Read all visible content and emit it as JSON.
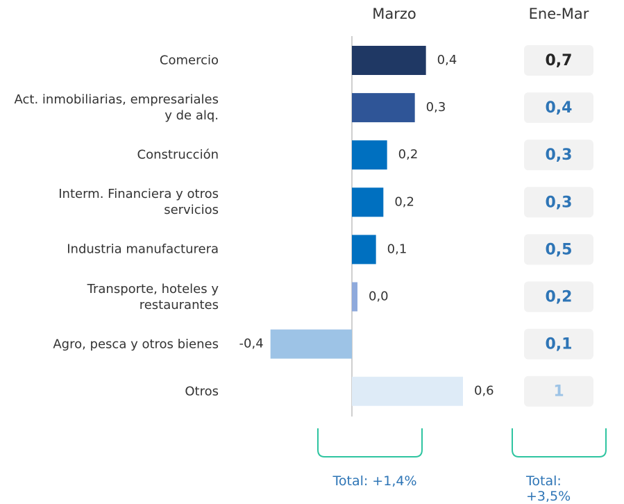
{
  "chart_data": {
    "type": "bar",
    "orientation": "horizontal",
    "categories": [
      "Comercio",
      "Act. inmobiliarias, empresariales y de alq.",
      "Construcción",
      "Interm. Financiera y otros servicios",
      "Industria manufacturera",
      "Transporte, hoteles y restaurantes",
      "Agro, pesca y otros bienes",
      "Otros"
    ],
    "series": [
      {
        "name": "Marzo",
        "values": [
          0.4,
          0.34,
          0.19,
          0.17,
          0.13,
          0.03,
          -0.44,
          0.6
        ],
        "value_labels": [
          "0,4",
          "0,3",
          "0,2",
          "0,2",
          "0,1",
          "0,0",
          "-0,4",
          "0,6"
        ],
        "colors": [
          "#1f3864",
          "#2f5597",
          "#0070c0",
          "#0070c0",
          "#0070c0",
          "#8faadc",
          "#9dc3e6",
          "#deebf7"
        ]
      },
      {
        "name": "Ene-Mar",
        "values": [
          0.7,
          0.4,
          0.3,
          0.3,
          0.5,
          0.2,
          0.1,
          1
        ],
        "value_labels": [
          "0,7",
          "0,4",
          "0,3",
          "0,3",
          "0,5",
          "0,2",
          "0,1",
          "1"
        ],
        "colors": [
          "#262626",
          "#2e75b6",
          "#2e75b6",
          "#2e75b6",
          "#2e75b6",
          "#2e75b6",
          "#2e75b6",
          "#9dc3e6"
        ]
      }
    ],
    "xlim": [
      -0.45,
      0.6
    ],
    "totals": [
      "Total: +1,4%",
      "Total: +3,5%"
    ],
    "totals_color": "#2e75b6",
    "bracket_color": "#2ec4a0"
  }
}
